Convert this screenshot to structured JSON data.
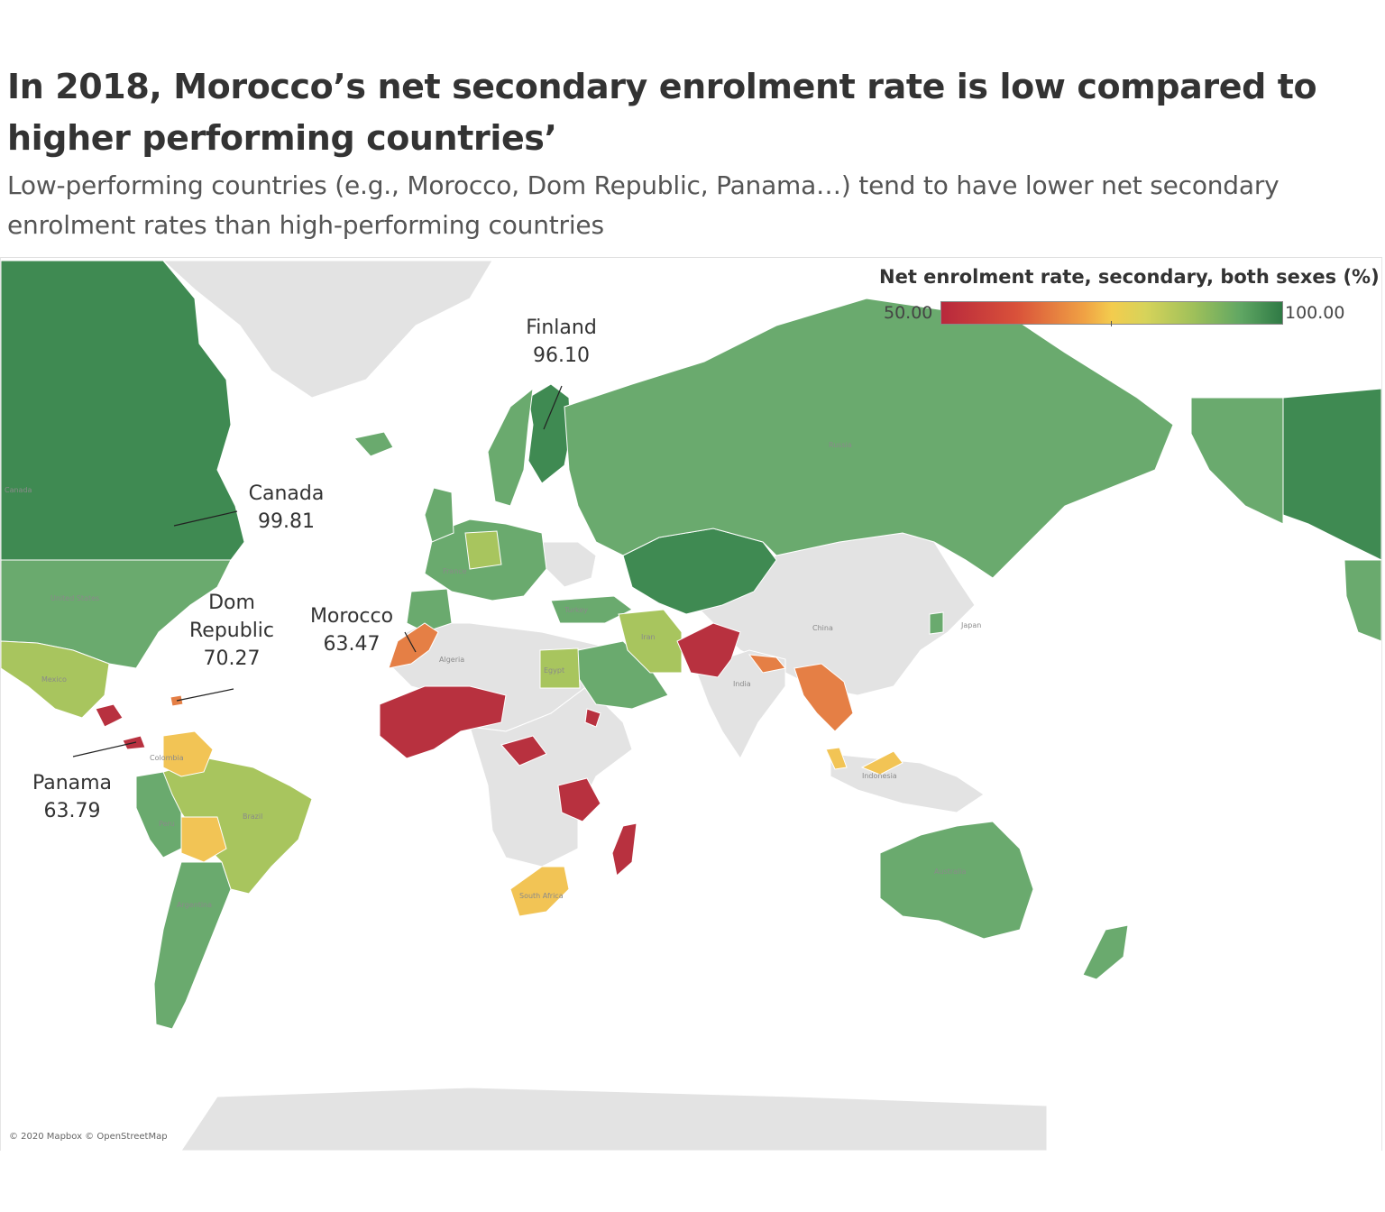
{
  "title": "In 2018, Morocco’s net secondary enrolment rate is low compared to higher performing countries’",
  "subtitle": "Low-performing countries (e.g., Morocco, Dom Republic, Panama…) tend to have lower net secondary enrolment rates than high-performing countries",
  "legend": {
    "title": "Net enrolment rate, secondary, both sexes (%)",
    "min_label": "50.00",
    "max_label": "100.00",
    "colors": [
      "#b8283c",
      "#f0a244",
      "#f3cc4e",
      "#9fc05a",
      "#2f7a45"
    ]
  },
  "callouts": [
    {
      "name": "Finland",
      "value": "96.10"
    },
    {
      "name": "Canada",
      "value": "99.81"
    },
    {
      "name": "Dom Republic",
      "value": "70.27"
    },
    {
      "name": "Morocco",
      "value": "63.47"
    },
    {
      "name": "Panama",
      "value": "63.79"
    }
  ],
  "map_labels": {
    "canada": "Canada",
    "united_states": "United States",
    "mexico": "Mexico",
    "colombia": "Colombia",
    "peru": "Peru",
    "brazil": "Brazil",
    "argentina": "Argentina",
    "russia": "Russia",
    "china": "China",
    "india": "India",
    "iran": "Iran",
    "egypt": "Egypt",
    "algeria": "Algeria",
    "turkey": "Turkey",
    "france": "France",
    "japan": "Japan",
    "indonesia": "Indonesia",
    "australia": "Australia",
    "south_africa": "South Africa"
  },
  "attribution": "© 2020 Mapbox © OpenStreetMap",
  "colors": {
    "no_data": "#e3e3e3",
    "dark_green": "#3f8a52",
    "green": "#6aaa6e",
    "light_green": "#a8c55e",
    "yellow": "#f2c455",
    "orange": "#e57f45",
    "red": "#b8313f"
  }
}
